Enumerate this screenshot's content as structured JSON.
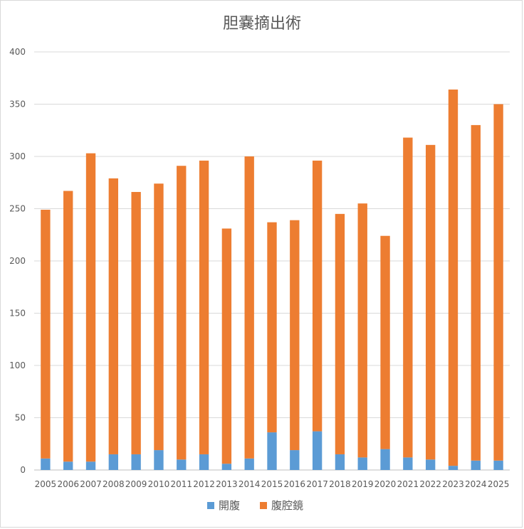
{
  "chart_data": {
    "type": "bar",
    "stacked": true,
    "title": "胆嚢摘出術",
    "xlabel": "",
    "ylabel": "",
    "ylim": [
      0,
      400
    ],
    "yticks": [
      0,
      50,
      100,
      150,
      200,
      250,
      300,
      350,
      400
    ],
    "grid": true,
    "legend": "bottom",
    "categories": [
      "2005",
      "2006",
      "2007",
      "2008",
      "2009",
      "2010",
      "2011",
      "2012",
      "2013",
      "2014",
      "2015",
      "2016",
      "2017",
      "2018",
      "2019",
      "2020",
      "2021",
      "2022",
      "2023",
      "2024",
      "2025"
    ],
    "series": [
      {
        "name": "開腹",
        "color": "#5b9bd5",
        "values": [
          11,
          8,
          8,
          15,
          15,
          19,
          10,
          15,
          6,
          11,
          36,
          19,
          37,
          15,
          12,
          20,
          12,
          10,
          4,
          9,
          9
        ]
      },
      {
        "name": "腹腔鏡",
        "color": "#ed7d31",
        "values": [
          238,
          259,
          295,
          264,
          251,
          255,
          281,
          281,
          225,
          289,
          201,
          220,
          259,
          230,
          243,
          204,
          306,
          301,
          360,
          321,
          341
        ]
      }
    ]
  }
}
